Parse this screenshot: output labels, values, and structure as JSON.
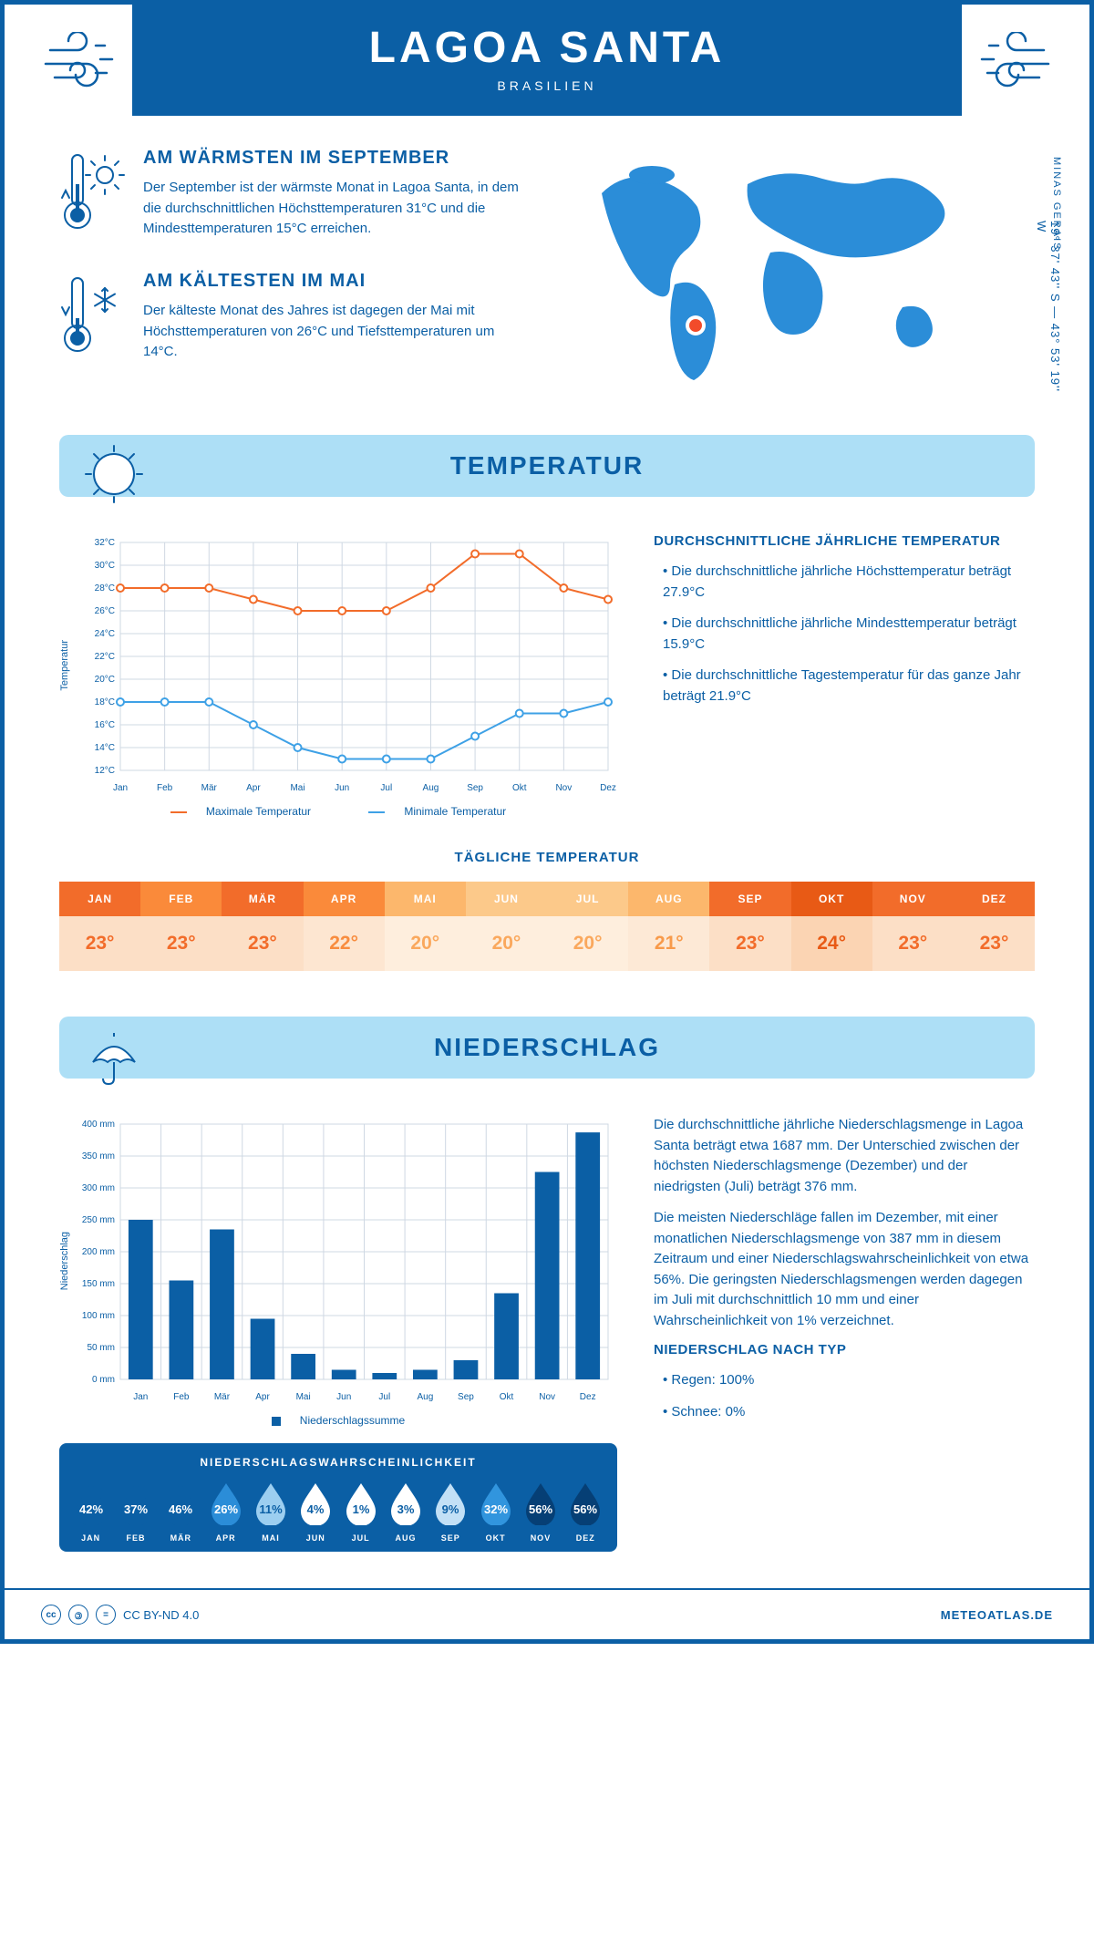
{
  "header": {
    "title": "LAGOA SANTA",
    "subtitle": "BRASILIEN",
    "region": "MINAS GERAIS",
    "coords": "19° 37' 43'' S — 43° 53' 19'' W"
  },
  "warmest": {
    "title": "AM WÄRMSTEN IM SEPTEMBER",
    "text": "Der September ist der wärmste Monat in Lagoa Santa, in dem die durchschnittlichen Höchsttemperaturen 31°C und die Mindesttemperaturen 15°C erreichen."
  },
  "coldest": {
    "title": "AM KÄLTESTEN IM MAI",
    "text": "Der kälteste Monat des Jahres ist dagegen der Mai mit Höchsttemperaturen von 26°C und Tiefsttemperaturen um 14°C."
  },
  "temp_section": {
    "title": "TEMPERATUR",
    "chart": {
      "type": "line",
      "months": [
        "Jan",
        "Feb",
        "Mär",
        "Apr",
        "Mai",
        "Jun",
        "Jul",
        "Aug",
        "Sep",
        "Okt",
        "Nov",
        "Dez"
      ],
      "yticks": [
        "12°C",
        "14°C",
        "16°C",
        "18°C",
        "20°C",
        "22°C",
        "24°C",
        "26°C",
        "28°C",
        "30°C",
        "32°C"
      ],
      "ymin": 12,
      "ymax": 32,
      "max_series": [
        28,
        28,
        28,
        27,
        26,
        26,
        26,
        28,
        31,
        31,
        28,
        27
      ],
      "min_series": [
        18,
        18,
        18,
        16,
        14,
        13,
        13,
        13,
        15,
        17,
        17,
        18
      ],
      "max_color": "#f26c2a",
      "min_color": "#3ea1e6",
      "grid_color": "#cfd8e3",
      "background_color": "#ffffff",
      "ylabel": "Temperatur",
      "max_label": "Maximale Temperatur",
      "min_label": "Minimale Temperatur",
      "label_fontsize": 11,
      "tick_fontsize": 10,
      "line_width": 2,
      "marker_size": 4
    },
    "avg": {
      "title": "DURCHSCHNITTLICHE JÄHRLICHE TEMPERATUR",
      "b1": "• Die durchschnittliche jährliche Höchsttemperatur beträgt 27.9°C",
      "b2": "• Die durchschnittliche jährliche Mindesttemperatur beträgt 15.9°C",
      "b3": "• Die durchschnittliche Tagestemperatur für das ganze Jahr beträgt 21.9°C"
    },
    "daily": {
      "title": "TÄGLICHE TEMPERATUR",
      "months": [
        "JAN",
        "FEB",
        "MÄR",
        "APR",
        "MAI",
        "JUN",
        "JUL",
        "AUG",
        "SEP",
        "OKT",
        "NOV",
        "DEZ"
      ],
      "values": [
        "23°",
        "23°",
        "23°",
        "22°",
        "20°",
        "20°",
        "20°",
        "21°",
        "23°",
        "24°",
        "23°",
        "23°"
      ],
      "header_colors": [
        "#f26c2a",
        "#fa8a3a",
        "#f26c2a",
        "#fa8a3a",
        "#fcb76c",
        "#fcc98a",
        "#fcc98a",
        "#fcb76c",
        "#f26c2a",
        "#e85a15",
        "#f26c2a",
        "#f26c2a"
      ],
      "value_colors": [
        "#f26c2a",
        "#f26c2a",
        "#f26c2a",
        "#f88c3e",
        "#faa85d",
        "#faa85d",
        "#faa85d",
        "#f89a4a",
        "#f26c2a",
        "#e85a15",
        "#f26c2a",
        "#f26c2a"
      ],
      "value_bg_colors": [
        "#fcdfc6",
        "#fcdfc6",
        "#fcdfc6",
        "#fde6d1",
        "#feeedd",
        "#feeedd",
        "#feeedd",
        "#fde9d6",
        "#fcdfc6",
        "#fbd4b3",
        "#fcdfc6",
        "#fcdfc6"
      ]
    }
  },
  "precip_section": {
    "title": "NIEDERSCHLAG",
    "chart": {
      "type": "bar",
      "months": [
        "Jan",
        "Feb",
        "Mär",
        "Apr",
        "Mai",
        "Jun",
        "Jul",
        "Aug",
        "Sep",
        "Okt",
        "Nov",
        "Dez"
      ],
      "values": [
        250,
        155,
        235,
        95,
        40,
        15,
        10,
        15,
        30,
        135,
        325,
        387
      ],
      "yticks": [
        "0 mm",
        "50 mm",
        "100 mm",
        "150 mm",
        "200 mm",
        "250 mm",
        "300 mm",
        "350 mm",
        "400 mm"
      ],
      "ymin": 0,
      "ymax": 400,
      "bar_color": "#0b5fa5",
      "grid_color": "#cfd8e3",
      "background_color": "#ffffff",
      "ylabel": "Niederschlag",
      "legend_label": "Niederschlagssumme",
      "label_fontsize": 11,
      "tick_fontsize": 10,
      "bar_width": 0.6
    },
    "text1": "Die durchschnittliche jährliche Niederschlagsmenge in Lagoa Santa beträgt etwa 1687 mm. Der Unterschied zwischen der höchsten Niederschlagsmenge (Dezember) und der niedrigsten (Juli) beträgt 376 mm.",
    "text2": "Die meisten Niederschläge fallen im Dezember, mit einer monatlichen Niederschlagsmenge von 387 mm in diesem Zeitraum und einer Niederschlagswahrscheinlichkeit von etwa 56%. Die geringsten Niederschlagsmengen werden dagegen im Juli mit durchschnittlich 10 mm und einer Wahrscheinlichkeit von 1% verzeichnet.",
    "by_type_title": "NIEDERSCHLAG NACH TYP",
    "by_type_b1": "• Regen: 100%",
    "by_type_b2": "• Schnee: 0%",
    "prob": {
      "title": "NIEDERSCHLAGSWAHRSCHEINLICHKEIT",
      "months": [
        "JAN",
        "FEB",
        "MÄR",
        "APR",
        "MAI",
        "JUN",
        "JUL",
        "AUG",
        "SEP",
        "OKT",
        "NOV",
        "DEZ"
      ],
      "values": [
        "42%",
        "37%",
        "46%",
        "26%",
        "11%",
        "4%",
        "1%",
        "3%",
        "9%",
        "32%",
        "56%",
        "56%"
      ],
      "drop_fills": [
        "#0b5fa5",
        "#0b5fa5",
        "#0b5fa5",
        "#2b8dd8",
        "#9ccef0",
        "#ffffff",
        "#ffffff",
        "#ffffff",
        "#c2e0f6",
        "#3195de",
        "#063f75",
        "#063f75"
      ],
      "text_colors": [
        "#ffffff",
        "#ffffff",
        "#ffffff",
        "#ffffff",
        "#0b5fa5",
        "#0b5fa5",
        "#0b5fa5",
        "#0b5fa5",
        "#0b5fa5",
        "#ffffff",
        "#ffffff",
        "#ffffff"
      ]
    }
  },
  "footer": {
    "license": "CC BY-ND 4.0",
    "site": "METEOATLAS.DE"
  }
}
